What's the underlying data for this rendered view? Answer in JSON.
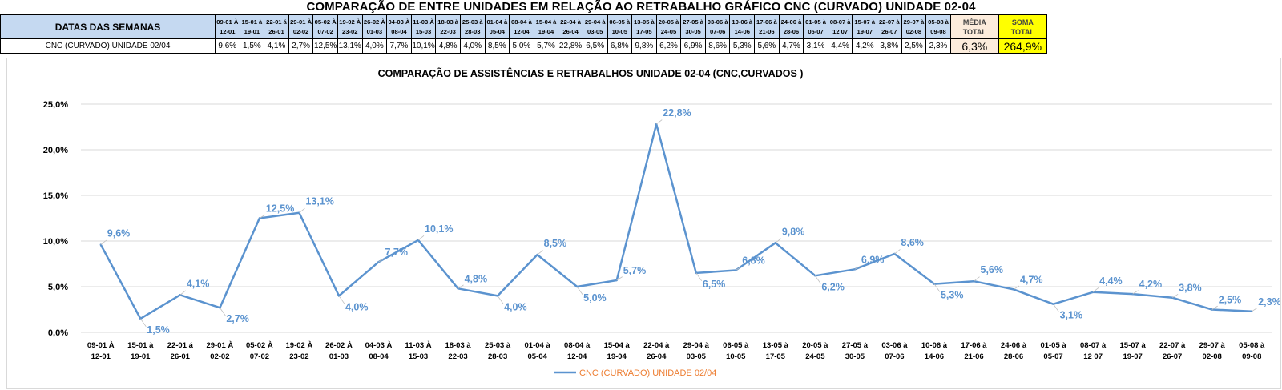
{
  "table": {
    "title": "COMPARAÇÃO DE ENTRE UNIDADES EM RELAÇÃO AO RETRABALHO GRÁFICO CNC (CURVADO) UNIDADE 02-04",
    "header_label": "DATAS DAS SEMANAS",
    "row_label": "CNC (CURVADO) UNIDADE 02/04",
    "weeks": [
      [
        "09-01 À",
        "12-01"
      ],
      [
        "15-01 à",
        "19-01"
      ],
      [
        "22-01 á",
        "26-01"
      ],
      [
        "29-01 À",
        "02-02"
      ],
      [
        "05-02 À",
        "07-02"
      ],
      [
        "19-02 À",
        "23-02"
      ],
      [
        "26-02 À",
        "01-03"
      ],
      [
        "04-03 À",
        "08-04"
      ],
      [
        "11-03 À",
        "15-03"
      ],
      [
        "18-03 à",
        "22-03"
      ],
      [
        "25-03 à",
        "28-03"
      ],
      [
        "01-04 à",
        "05-04"
      ],
      [
        "08-04 à",
        "12-04"
      ],
      [
        "15-04 à",
        "19-04"
      ],
      [
        "22-04 à",
        "26-04"
      ],
      [
        "29-04 à",
        "03-05"
      ],
      [
        "06-05 à",
        "10-05"
      ],
      [
        "13-05 à",
        "17-05"
      ],
      [
        "20-05 à",
        "24-05"
      ],
      [
        "27-05 à",
        "30-05"
      ],
      [
        "03-06 à",
        "07-06"
      ],
      [
        "10-06 à",
        "14-06"
      ],
      [
        "17-06 à",
        "21-06"
      ],
      [
        "24-06 à",
        "28-06"
      ],
      [
        "01-05 à",
        "05-07"
      ],
      [
        "08-07 à",
        "12 07"
      ],
      [
        "15-07 à",
        "19-07"
      ],
      [
        "22-07 à",
        "26-07"
      ],
      [
        "29-07 à",
        "02-08"
      ],
      [
        "05-08 à",
        "09-08"
      ]
    ],
    "values": [
      "9,6%",
      "1,5%",
      "4,1%",
      "2,7%",
      "12,5%",
      "13,1%",
      "4,0%",
      "7,7%",
      "10,1%",
      "4,8%",
      "4,0%",
      "8,5%",
      "5,0%",
      "5,7%",
      "22,8%",
      "6,5%",
      "6,8%",
      "9,8%",
      "6,2%",
      "6,9%",
      "8,6%",
      "5,3%",
      "5,6%",
      "4,7%",
      "3,1%",
      "4,4%",
      "4,2%",
      "3,8%",
      "2,5%",
      "2,3%"
    ],
    "media_label": [
      "MÉDIA",
      "TOTAL"
    ],
    "soma_label": [
      "SOMA",
      "TOTAL"
    ],
    "media_value": "6,3%",
    "soma_value": "264,9%"
  },
  "colors": {
    "line": "#5b93cf",
    "header_bg": "#c5d9f1",
    "avg_bg": "#fcecdc",
    "sum_bg": "#ffff00",
    "legend_text": "#ed7d31",
    "grid": "#d9d9d9"
  },
  "chart_data": {
    "type": "line",
    "title": "COMPARAÇÃO DE ASSISTÊNCIAS E RETRABALHOS UNIDADE 02-04  (CNC,CURVADOS )",
    "categories": [
      [
        "09-01 À",
        "12-01"
      ],
      [
        "15-01 à",
        "19-01"
      ],
      [
        "22-01 á",
        "26-01"
      ],
      [
        "29-01 À",
        "02-02"
      ],
      [
        "05-02 À",
        "07-02"
      ],
      [
        "19-02 À",
        "23-02"
      ],
      [
        "26-02 À",
        "01-03"
      ],
      [
        "04-03 À",
        "08-04"
      ],
      [
        "11-03 À",
        "15-03"
      ],
      [
        "18-03 à",
        "22-03"
      ],
      [
        "25-03 à",
        "28-03"
      ],
      [
        "01-04 à",
        "05-04"
      ],
      [
        "08-04 à",
        "12-04"
      ],
      [
        "15-04 à",
        "19-04"
      ],
      [
        "22-04 à",
        "26-04"
      ],
      [
        "29-04 à",
        "03-05"
      ],
      [
        "06-05 à",
        "10-05"
      ],
      [
        "13-05 à",
        "17-05"
      ],
      [
        "20-05 à",
        "24-05"
      ],
      [
        "27-05 à",
        "30-05"
      ],
      [
        "03-06 à",
        "07-06"
      ],
      [
        "10-06 à",
        "14-06"
      ],
      [
        "17-06 à",
        "21-06"
      ],
      [
        "24-06 à",
        "28-06"
      ],
      [
        "01-05 à",
        "05-07"
      ],
      [
        "08-07 à",
        "12 07"
      ],
      [
        "15-07 à",
        "19-07"
      ],
      [
        "22-07 à",
        "26-07"
      ],
      [
        "29-07 à",
        "02-08"
      ],
      [
        "05-08 à",
        "09-08"
      ]
    ],
    "series": [
      {
        "name": "CNC (CURVADO) UNIDADE 02/04",
        "values": [
          9.6,
          1.5,
          4.1,
          2.7,
          12.5,
          13.1,
          4.0,
          7.7,
          10.1,
          4.8,
          4.0,
          8.5,
          5.0,
          5.7,
          22.8,
          6.5,
          6.8,
          9.8,
          6.2,
          6.9,
          8.6,
          5.3,
          5.6,
          4.7,
          3.1,
          4.4,
          4.2,
          3.8,
          2.5,
          2.3
        ],
        "labels": [
          "9,6%",
          "1,5%",
          "4,1%",
          "2,7%",
          "12,5%",
          "13,1%",
          "4,0%",
          "7,7%",
          "10,1%",
          "4,8%",
          "4,0%",
          "8,5%",
          "5,0%",
          "5,7%",
          "22,8%",
          "6,5%",
          "6,8%",
          "9,8%",
          "6,2%",
          "6,9%",
          "8,6%",
          "5,3%",
          "5,6%",
          "4,7%",
          "3,1%",
          "4,4%",
          "4,2%",
          "3,8%",
          "2,5%",
          "2,3%"
        ]
      }
    ],
    "yticks": [
      "0,0%",
      "5,0%",
      "10,0%",
      "15,0%",
      "20,0%",
      "25,0%"
    ],
    "ylim": [
      0,
      25
    ],
    "grid": true,
    "legend": "bottom"
  }
}
